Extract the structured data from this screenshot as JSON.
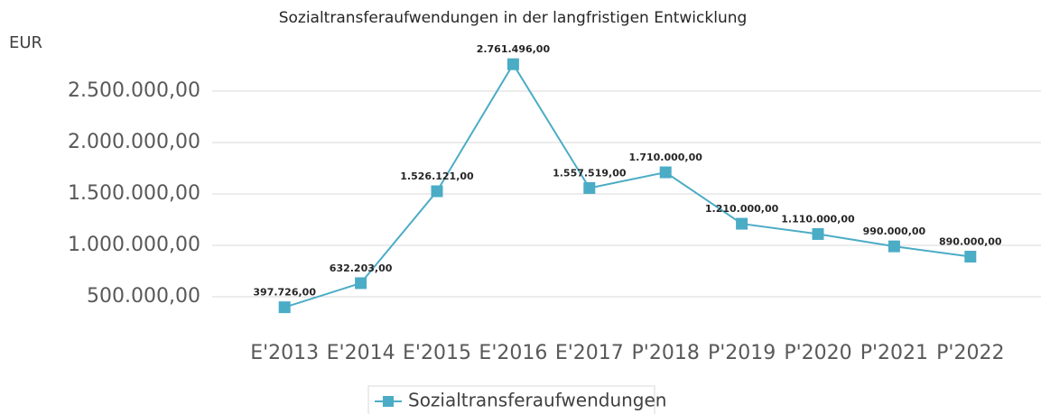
{
  "chart_data": {
    "type": "line",
    "title": "Sozialtransferaufwendungen in der langfristigen Entwicklung",
    "y_axis_label": "EUR",
    "categories": [
      "E'2013",
      "E'2014",
      "E'2015",
      "E'2016",
      "E'2017",
      "P'2018",
      "P'2019",
      "P'2020",
      "P'2021",
      "P'2022"
    ],
    "series": [
      {
        "name": "Sozialtransferaufwendungen",
        "color": "#4bacc6",
        "values": [
          397726,
          632203,
          1526121,
          2761496,
          1557519,
          1710000,
          1210000,
          1110000,
          990000,
          890000
        ],
        "value_labels": [
          "397.726,00",
          "632.203,00",
          "1.526.121,00",
          "2.761.496,00",
          "1.557.519,00",
          "1.710.000,00",
          "1.210.000,00",
          "1.110.000,00",
          "990.000,00",
          "890.000,00"
        ]
      }
    ],
    "ylim": [
      0,
      3000000
    ],
    "yticks": [
      {
        "value": 500000,
        "label": "500.000,00"
      },
      {
        "value": 1000000,
        "label": "1.000.000,00"
      },
      {
        "value": 1500000,
        "label": "1.500.000,00"
      },
      {
        "value": 2000000,
        "label": "2.000.000,00"
      },
      {
        "value": 2500000,
        "label": "2.500.000,00"
      }
    ],
    "grid": true,
    "legend": "bottom"
  }
}
